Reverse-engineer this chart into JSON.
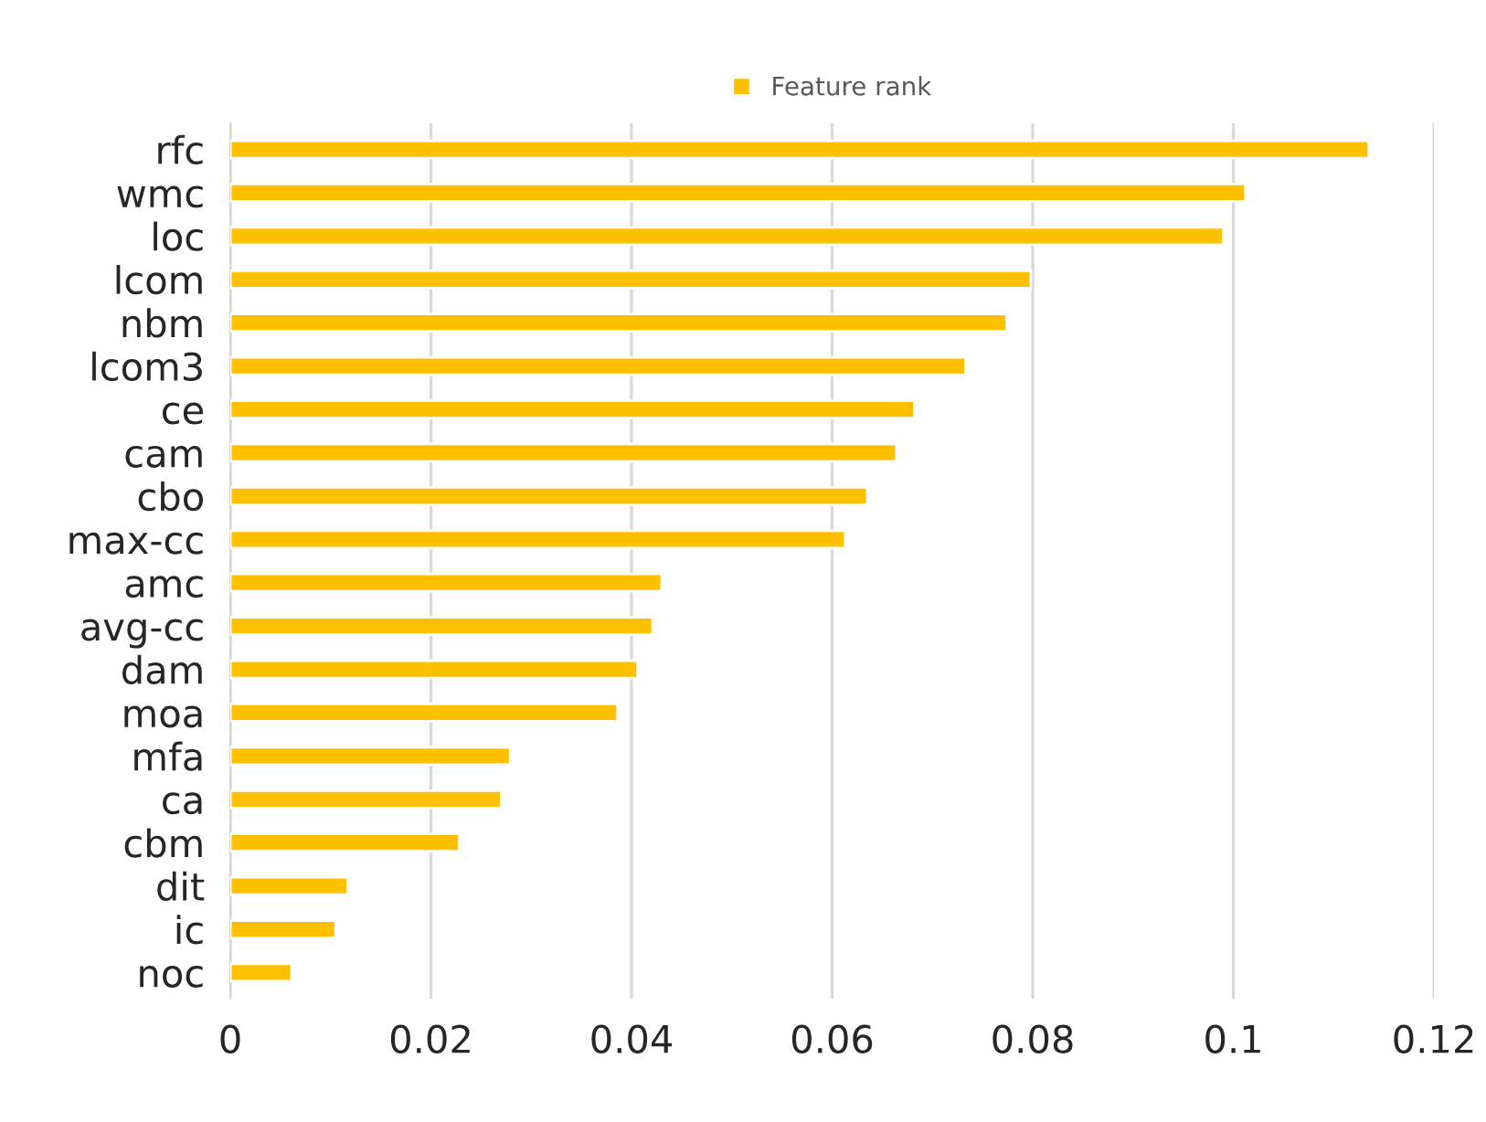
{
  "chart_data": {
    "type": "bar",
    "orientation": "horizontal",
    "categories": [
      "rfc",
      "wmc",
      "loc",
      "lcom",
      "nbm",
      "lcom3",
      "ce",
      "cam",
      "cbo",
      "max-cc",
      "amc",
      "avg-cc",
      "dam",
      "moa",
      "mfa",
      "ca",
      "cbm",
      "dit",
      "ic",
      "noc"
    ],
    "series": [
      {
        "name": "Feature rank",
        "color": "#ffc000",
        "values": [
          0.1135,
          0.1012,
          0.099,
          0.0798,
          0.0774,
          0.0733,
          0.0682,
          0.0664,
          0.0635,
          0.0613,
          0.043,
          0.0421,
          0.0406,
          0.0386,
          0.0279,
          0.027,
          0.0228,
          0.0117,
          0.0105,
          0.0061
        ]
      }
    ],
    "xlim": [
      0,
      0.12
    ],
    "xticks": [
      0,
      0.02,
      0.04,
      0.06,
      0.08,
      0.1,
      0.12
    ],
    "grid": "x",
    "legend": "top"
  }
}
